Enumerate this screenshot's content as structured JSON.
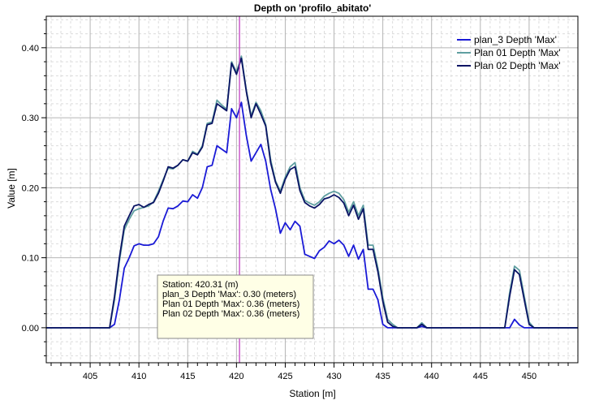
{
  "chart_data": {
    "type": "line",
    "title": "Depth on 'profilo_abitato'",
    "xlabel": "Station [m]",
    "ylabel": "Value [m]",
    "xlim": [
      400.5,
      455
    ],
    "ylim": [
      -0.05,
      0.445
    ],
    "x_ticks": [
      405,
      410,
      415,
      420,
      425,
      430,
      435,
      440,
      445,
      450
    ],
    "x_tick_labels": [
      "405",
      "410",
      "415",
      "420",
      "425",
      "430",
      "435",
      "440",
      "445",
      "450"
    ],
    "y_ticks": [
      0.0,
      0.1,
      0.2,
      0.3,
      0.4
    ],
    "y_tick_labels": [
      "0.00",
      "0.10",
      "0.20",
      "0.30",
      "0.40"
    ],
    "grid": true,
    "legend_position": "top-right",
    "cursor_x": 420.31,
    "tooltip": {
      "lines": [
        "Station: 420.31 (m)",
        "plan_3 Depth 'Max': 0.30 (meters)",
        "Plan 01 Depth 'Max': 0.36 (meters)",
        "Plan 02 Depth 'Max': 0.36 (meters)"
      ]
    },
    "series": [
      {
        "name": "plan_3 Depth 'Max'",
        "color": "#1a1ad6",
        "x": [
          400.5,
          407.0,
          407.5,
          408.0,
          408.5,
          409.0,
          409.5,
          410.0,
          410.5,
          411.0,
          411.5,
          412.0,
          412.5,
          413.0,
          413.5,
          414.0,
          414.5,
          415.0,
          415.5,
          416.0,
          416.5,
          417.0,
          417.5,
          418.0,
          418.5,
          419.0,
          419.5,
          420.0,
          420.5,
          421.0,
          421.5,
          422.0,
          422.5,
          423.0,
          423.5,
          424.0,
          424.5,
          425.0,
          425.5,
          426.0,
          426.5,
          427.0,
          427.5,
          428.0,
          428.5,
          429.0,
          429.5,
          430.0,
          430.5,
          431.0,
          431.5,
          432.0,
          432.5,
          433.0,
          433.5,
          434.0,
          434.5,
          435.0,
          435.5,
          436.0,
          438.5,
          439.0,
          439.5,
          447.5,
          448.0,
          448.5,
          449.0,
          449.5,
          455.0
        ],
        "y": [
          0.0,
          0.0,
          0.005,
          0.04,
          0.085,
          0.1,
          0.117,
          0.12,
          0.118,
          0.118,
          0.12,
          0.13,
          0.153,
          0.171,
          0.17,
          0.174,
          0.181,
          0.18,
          0.19,
          0.185,
          0.2,
          0.23,
          0.232,
          0.26,
          0.255,
          0.25,
          0.313,
          0.3,
          0.322,
          0.275,
          0.238,
          0.25,
          0.262,
          0.238,
          0.198,
          0.17,
          0.135,
          0.15,
          0.14,
          0.152,
          0.145,
          0.105,
          0.102,
          0.099,
          0.11,
          0.115,
          0.124,
          0.12,
          0.125,
          0.118,
          0.102,
          0.118,
          0.098,
          0.112,
          0.055,
          0.055,
          0.04,
          0.005,
          0.0,
          0.0,
          0.0,
          0.002,
          0.0,
          0.0,
          0.0,
          0.012,
          0.004,
          0.0,
          0.0
        ]
      },
      {
        "name": "Plan 01 Depth 'Max'",
        "color": "#5f9ea0",
        "x": [
          400.5,
          407.0,
          407.5,
          408.0,
          408.5,
          409.0,
          409.5,
          410.0,
          410.5,
          411.0,
          411.5,
          412.0,
          412.5,
          413.0,
          413.5,
          414.0,
          414.5,
          415.0,
          415.5,
          416.0,
          416.5,
          417.0,
          417.5,
          418.0,
          418.5,
          419.0,
          419.5,
          420.0,
          420.5,
          421.0,
          421.5,
          422.0,
          422.5,
          423.0,
          423.5,
          424.0,
          424.5,
          425.0,
          425.5,
          426.0,
          426.5,
          427.0,
          427.5,
          428.0,
          428.5,
          429.0,
          429.5,
          430.0,
          430.5,
          431.0,
          431.5,
          432.0,
          432.5,
          433.0,
          433.5,
          434.0,
          434.5,
          435.0,
          435.5,
          436.0,
          436.5,
          438.5,
          439.0,
          439.5,
          447.5,
          448.0,
          448.5,
          449.0,
          449.5,
          450.0,
          450.5,
          455.0
        ],
        "y": [
          0.0,
          0.0,
          0.04,
          0.095,
          0.14,
          0.155,
          0.167,
          0.17,
          0.172,
          0.174,
          0.18,
          0.195,
          0.212,
          0.228,
          0.227,
          0.232,
          0.24,
          0.238,
          0.252,
          0.248,
          0.26,
          0.292,
          0.294,
          0.325,
          0.318,
          0.312,
          0.38,
          0.365,
          0.388,
          0.34,
          0.303,
          0.322,
          0.31,
          0.29,
          0.24,
          0.21,
          0.195,
          0.215,
          0.23,
          0.236,
          0.2,
          0.182,
          0.178,
          0.175,
          0.18,
          0.188,
          0.192,
          0.195,
          0.192,
          0.183,
          0.165,
          0.18,
          0.16,
          0.175,
          0.118,
          0.118,
          0.085,
          0.043,
          0.012,
          0.005,
          0.0,
          0.0,
          0.007,
          0.0,
          0.0,
          0.05,
          0.088,
          0.082,
          0.045,
          0.008,
          0.0,
          0.0
        ]
      },
      {
        "name": "Plan 02 Depth 'Max'",
        "color": "#0a1464",
        "x": [
          400.5,
          407.0,
          407.5,
          408.0,
          408.5,
          409.0,
          409.5,
          410.0,
          410.5,
          411.0,
          411.5,
          412.0,
          412.5,
          413.0,
          413.5,
          414.0,
          414.5,
          415.0,
          415.5,
          416.0,
          416.5,
          417.0,
          417.5,
          418.0,
          418.5,
          419.0,
          419.5,
          420.0,
          420.5,
          421.0,
          421.5,
          422.0,
          422.5,
          423.0,
          423.5,
          424.0,
          424.5,
          425.0,
          425.5,
          426.0,
          426.5,
          427.0,
          427.5,
          428.0,
          428.5,
          429.0,
          429.5,
          430.0,
          430.5,
          431.0,
          431.5,
          432.0,
          432.5,
          433.0,
          433.5,
          434.0,
          434.5,
          435.0,
          435.5,
          436.0,
          436.5,
          438.5,
          439.0,
          439.5,
          447.5,
          448.0,
          448.5,
          449.0,
          449.5,
          450.0,
          450.5,
          455.0
        ],
        "y": [
          0.0,
          0.0,
          0.045,
          0.1,
          0.145,
          0.16,
          0.174,
          0.176,
          0.172,
          0.176,
          0.179,
          0.192,
          0.21,
          0.23,
          0.228,
          0.232,
          0.24,
          0.238,
          0.25,
          0.247,
          0.258,
          0.29,
          0.292,
          0.32,
          0.315,
          0.31,
          0.378,
          0.362,
          0.385,
          0.338,
          0.3,
          0.32,
          0.305,
          0.288,
          0.236,
          0.208,
          0.192,
          0.212,
          0.226,
          0.23,
          0.196,
          0.179,
          0.174,
          0.171,
          0.176,
          0.184,
          0.186,
          0.19,
          0.186,
          0.178,
          0.16,
          0.175,
          0.155,
          0.17,
          0.112,
          0.112,
          0.08,
          0.038,
          0.008,
          0.002,
          0.0,
          0.0,
          0.005,
          0.0,
          0.0,
          0.045,
          0.083,
          0.076,
          0.04,
          0.005,
          0.0,
          0.0
        ]
      }
    ]
  }
}
